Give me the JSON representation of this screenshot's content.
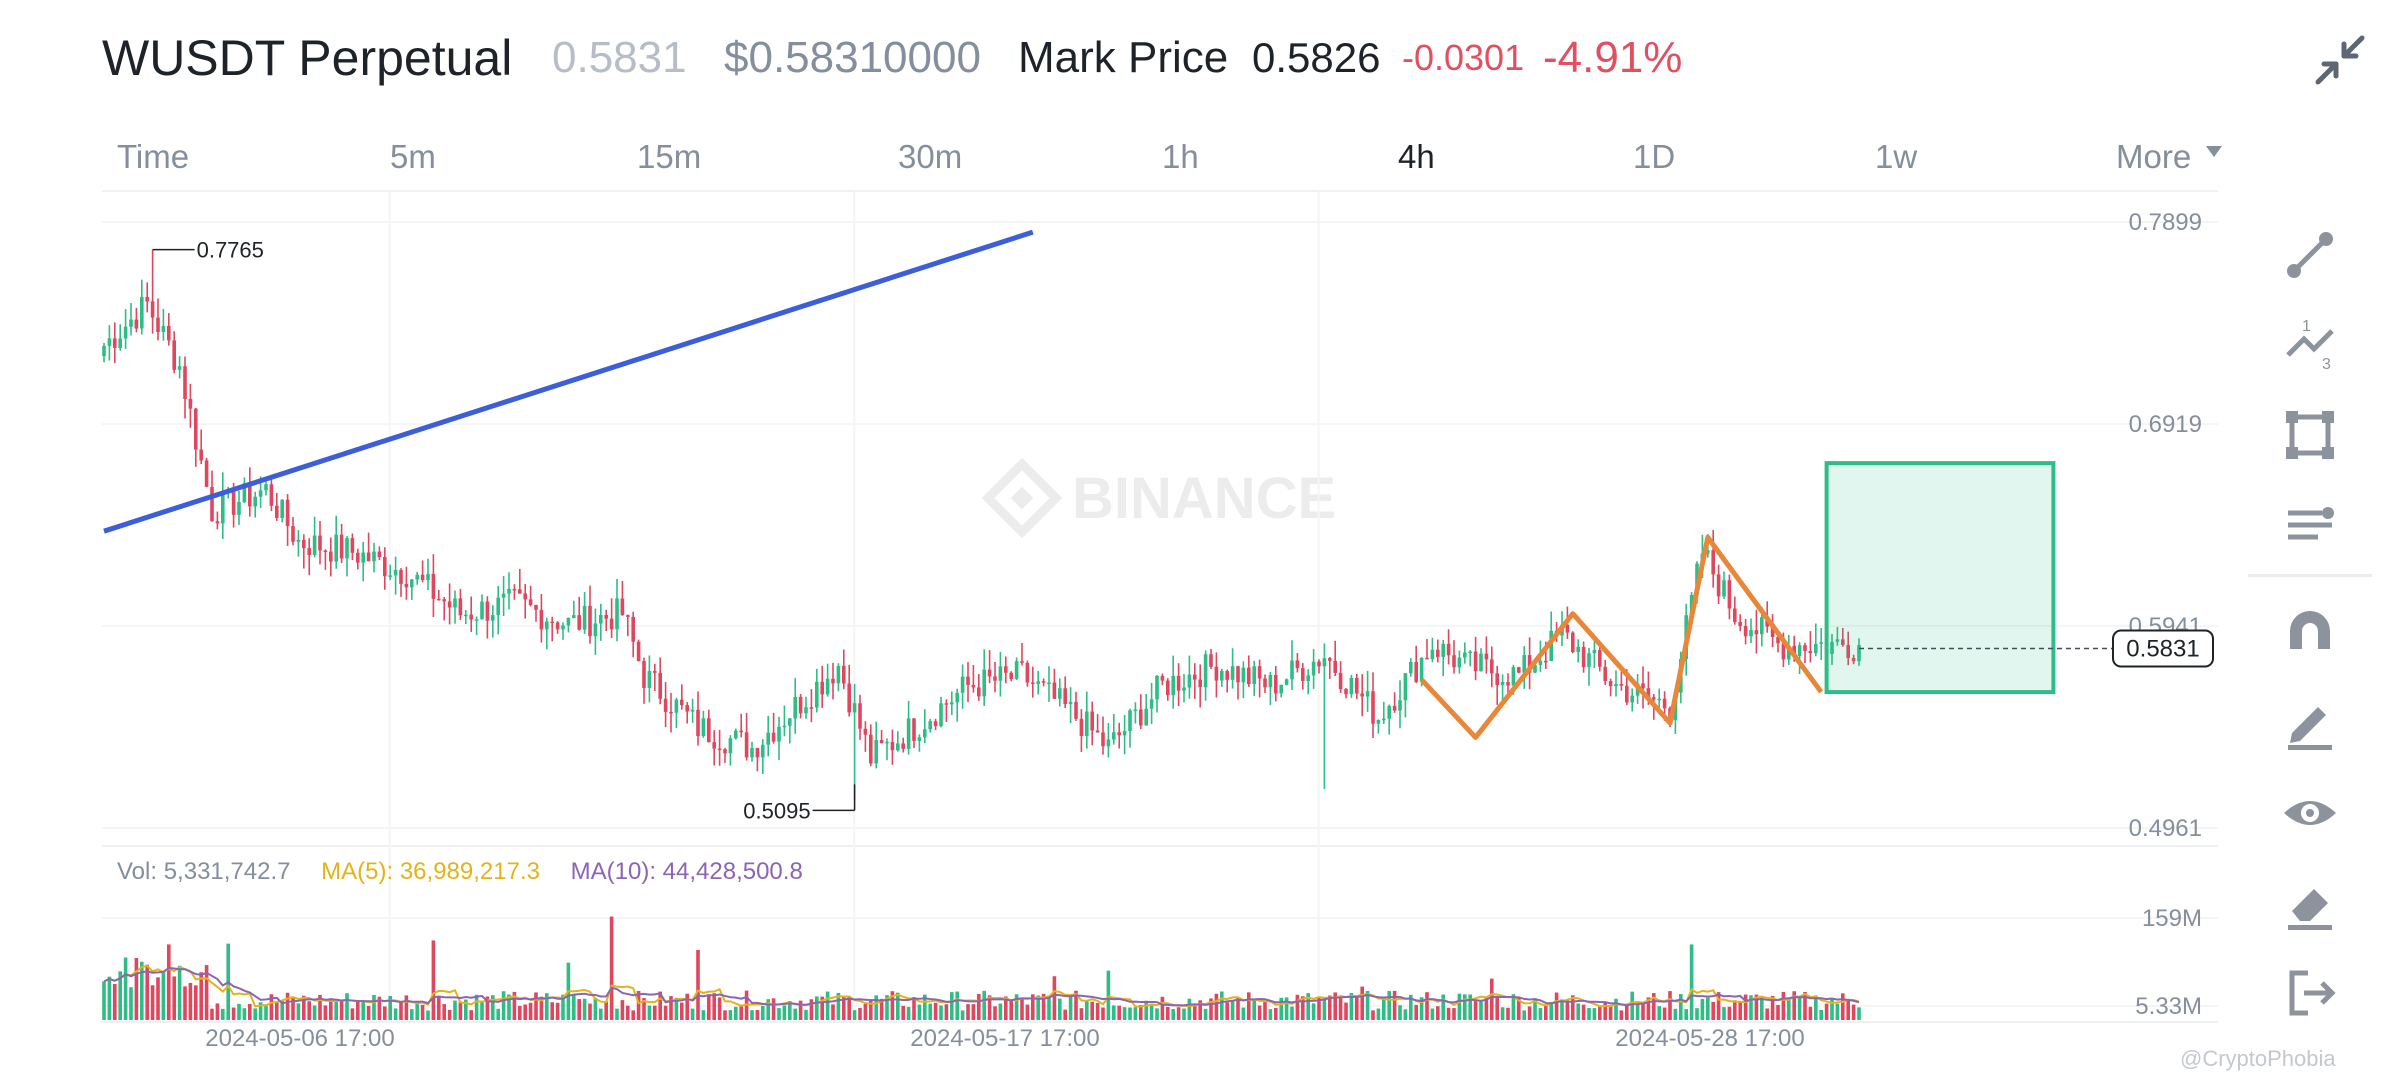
{
  "header": {
    "symbol": "WUSDT Perpetual",
    "last_price": "0.5831",
    "usd_price": "$0.58310000",
    "mark_label": "Mark Price",
    "mark_price": "0.5826",
    "change": "-0.0301",
    "change_pct": "-4.91%",
    "collapse_icon": "collapse-arrows-icon"
  },
  "tabs": [
    {
      "label": "Time",
      "active": false
    },
    {
      "label": "5m",
      "active": false
    },
    {
      "label": "15m",
      "active": false
    },
    {
      "label": "30m",
      "active": false
    },
    {
      "label": "1h",
      "active": false
    },
    {
      "label": "4h",
      "active": true
    },
    {
      "label": "1D",
      "active": false
    },
    {
      "label": "1w",
      "active": false
    },
    {
      "label": "More",
      "active": false
    }
  ],
  "volume_legend": {
    "vol": "Vol: 5,331,742.7",
    "ma5": "MA(5): 36,989,217.3",
    "ma10": "MA(10): 44,428,500.8"
  },
  "colors": {
    "up": "#2ebd85",
    "down": "#e0475e",
    "trendline": "#3c5ed8",
    "pattern": "#e8863a",
    "target_box": "#2ebd85",
    "ma5": "#e2b417",
    "ma10": "#8c64b4"
  },
  "watermark": "BINANCE",
  "credit": "@CryptoPhobia",
  "toolbar": [
    "trend-line-icon",
    "fibonacci-icon",
    "rectangle-icon",
    "indicator-lines-icon",
    "magnet-icon",
    "pencil-icon",
    "eye-icon",
    "eraser-icon",
    "exit-icon"
  ],
  "chart_data": {
    "type": "candlestick",
    "interval": "4h",
    "price_ticks": [
      "0.7899",
      "0.6919",
      "0.5941",
      "0.4961"
    ],
    "volume_ticks": [
      "159M",
      "5.33M"
    ],
    "x_ticks": [
      "2024-05-06 17:00",
      "2024-05-17 17:00",
      "2024-05-28 17:00"
    ],
    "ylim": [
      0.4961,
      0.7899
    ],
    "current_price": "0.5831",
    "high_label": "0.7765",
    "low_label": "0.5095",
    "high_value": 0.7765,
    "low_value": 0.5095,
    "waypoints": [
      [
        0,
        0.73
      ],
      [
        8,
        0.75
      ],
      [
        14,
        0.72
      ],
      [
        20,
        0.65
      ],
      [
        30,
        0.66
      ],
      [
        36,
        0.635
      ],
      [
        46,
        0.63
      ],
      [
        56,
        0.62
      ],
      [
        66,
        0.6
      ],
      [
        76,
        0.605
      ],
      [
        86,
        0.595
      ],
      [
        96,
        0.6
      ],
      [
        100,
        0.57
      ],
      [
        110,
        0.545
      ],
      [
        120,
        0.535
      ],
      [
        130,
        0.56
      ],
      [
        136,
        0.575
      ],
      [
        142,
        0.53
      ],
      [
        150,
        0.545
      ],
      [
        160,
        0.565
      ],
      [
        170,
        0.57
      ],
      [
        180,
        0.55
      ],
      [
        186,
        0.535
      ],
      [
        196,
        0.565
      ],
      [
        206,
        0.575
      ],
      [
        216,
        0.565
      ],
      [
        226,
        0.58
      ],
      [
        236,
        0.55
      ],
      [
        246,
        0.585
      ],
      [
        252,
        0.575
      ],
      [
        262,
        0.57
      ],
      [
        270,
        0.59
      ],
      [
        280,
        0.565
      ],
      [
        290,
        0.555
      ],
      [
        296,
        0.63
      ],
      [
        302,
        0.6
      ],
      [
        310,
        0.585
      ]
    ],
    "annotations": {
      "trendline": [
        [
          0,
          0.64
        ],
        [
          172,
          0.785
        ]
      ],
      "pattern": [
        [
          244,
          0.568
        ],
        [
          254,
          0.54
        ],
        [
          272,
          0.6
        ],
        [
          290,
          0.547
        ],
        [
          297,
          0.637
        ],
        [
          318,
          0.562
        ]
      ],
      "target_box": {
        "x0": 319,
        "x1": 361,
        "top": 0.673,
        "bottom": 0.562
      }
    }
  }
}
